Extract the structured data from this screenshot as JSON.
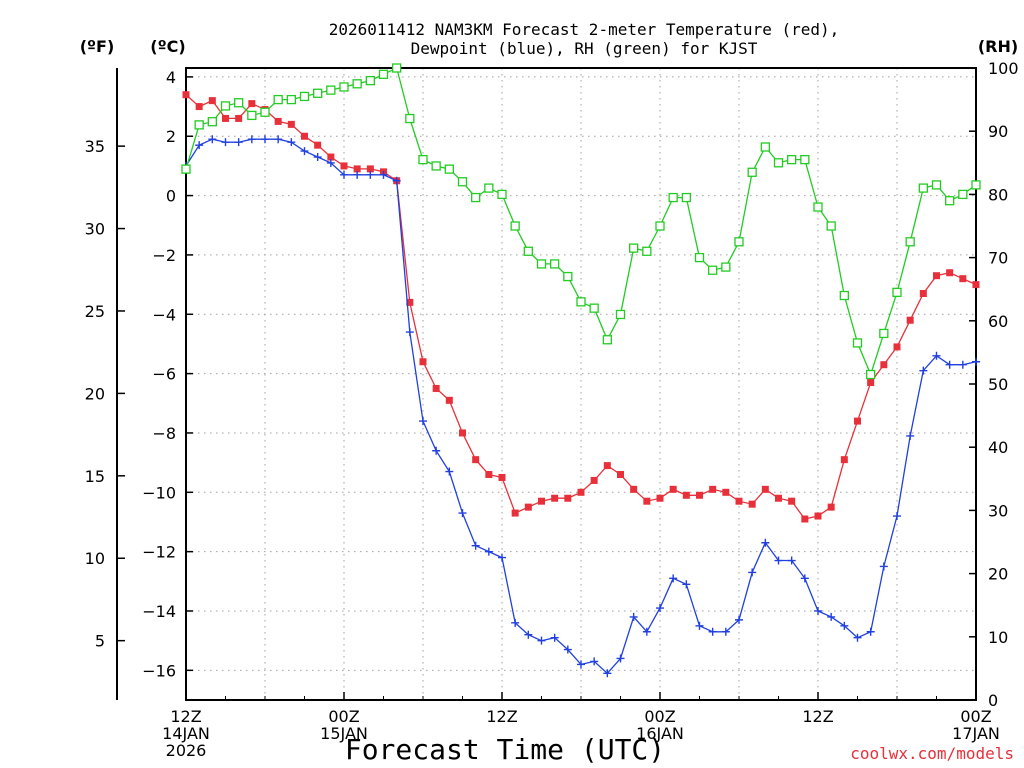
{
  "chart_data": {
    "type": "line",
    "title_line1": "2026011412 NAM3KM Forecast 2-meter Temperature (red),",
    "title_line2": "Dewpoint (blue), RH (green) for KJST",
    "xlabel": "Forecast Time (UTC)",
    "credit": "coolwx.com/models",
    "units": {
      "fahrenheit": "(ºF)",
      "celsius": "(ºC)",
      "rh": "(RH)"
    },
    "x_range_hours": [
      0,
      60
    ],
    "ylim_celsius": [
      -17,
      4.3
    ],
    "ylim_rh": [
      0,
      100
    ],
    "celsius_ticks": [
      4,
      2,
      0,
      -2,
      -4,
      -6,
      -8,
      -10,
      -12,
      -14,
      -16
    ],
    "fahrenheit_ticks": [
      35,
      30,
      25,
      20,
      15,
      10,
      5
    ],
    "rh_ticks": [
      0,
      10,
      20,
      30,
      40,
      50,
      60,
      70,
      80,
      90,
      100
    ],
    "x_ticks": [
      {
        "hour": 0,
        "lines": [
          "12Z",
          "14JAN",
          "2026"
        ]
      },
      {
        "hour": 12,
        "lines": [
          "00Z",
          "15JAN"
        ]
      },
      {
        "hour": 24,
        "lines": [
          "12Z"
        ]
      },
      {
        "hour": 36,
        "lines": [
          "00Z",
          "16JAN"
        ]
      },
      {
        "hour": 48,
        "lines": [
          "12Z"
        ]
      },
      {
        "hour": 60,
        "lines": [
          "00Z",
          "17JAN"
        ]
      }
    ],
    "series": [
      {
        "name": "2-meter Temperature",
        "color": "#e8303a",
        "axis": "celsius",
        "marker": "filled-square",
        "hours": [
          0,
          1,
          2,
          3,
          4,
          5,
          6,
          7,
          8,
          9,
          10,
          11,
          12,
          13,
          14,
          15,
          16,
          17,
          18,
          19,
          20,
          21,
          22,
          23,
          24,
          25,
          26,
          27,
          28,
          29,
          30,
          31,
          32,
          33,
          34,
          35,
          36,
          37,
          38,
          39,
          40,
          41,
          42,
          43,
          44,
          45,
          46,
          47,
          48,
          49,
          50,
          51,
          52,
          53,
          54,
          55,
          56,
          57,
          58,
          59,
          60
        ],
        "values": [
          3.4,
          3.0,
          3.2,
          2.6,
          2.6,
          3.1,
          2.9,
          2.5,
          2.4,
          2.0,
          1.7,
          1.3,
          1.0,
          0.9,
          0.9,
          0.8,
          0.5,
          -3.6,
          -5.6,
          -6.5,
          -6.9,
          -8.0,
          -8.9,
          -9.4,
          -9.5,
          -10.7,
          -10.5,
          -10.3,
          -10.2,
          -10.2,
          -10.0,
          -9.6,
          -9.1,
          -9.4,
          -9.9,
          -10.3,
          -10.2,
          -9.9,
          -10.1,
          -10.1,
          -9.9,
          -10.0,
          -10.3,
          -10.4,
          -9.9,
          -10.2,
          -10.3,
          -10.9,
          -10.8,
          -10.5,
          -8.9,
          -7.6,
          -6.3,
          -5.7,
          -5.1,
          -4.2,
          -3.3,
          -2.7,
          -2.6,
          -2.8,
          -3.0
        ]
      },
      {
        "name": "Dewpoint",
        "color": "#2040e0",
        "axis": "celsius",
        "marker": "plus",
        "hours": [
          0,
          1,
          2,
          3,
          4,
          5,
          6,
          7,
          8,
          9,
          10,
          11,
          12,
          13,
          14,
          15,
          16,
          17,
          18,
          19,
          20,
          21,
          22,
          23,
          24,
          25,
          26,
          27,
          28,
          29,
          30,
          31,
          32,
          33,
          34,
          35,
          36,
          37,
          38,
          39,
          40,
          41,
          42,
          43,
          44,
          45,
          46,
          47,
          48,
          49,
          50,
          51,
          52,
          53,
          54,
          55,
          56,
          57,
          58,
          59,
          60
        ],
        "values": [
          1.0,
          1.7,
          1.9,
          1.8,
          1.8,
          1.9,
          1.9,
          1.9,
          1.8,
          1.5,
          1.3,
          1.1,
          0.7,
          0.7,
          0.7,
          0.7,
          0.5,
          -4.6,
          -7.6,
          -8.6,
          -9.3,
          -10.7,
          -11.8,
          -12.0,
          -12.2,
          -14.4,
          -14.8,
          -15.0,
          -14.9,
          -15.3,
          -15.8,
          -15.7,
          -16.1,
          -15.6,
          -14.2,
          -14.7,
          -13.9,
          -12.9,
          -13.1,
          -14.5,
          -14.7,
          -14.7,
          -14.3,
          -12.7,
          -11.7,
          -12.3,
          -12.3,
          -12.9,
          -14.0,
          -14.2,
          -14.5,
          -14.9,
          -14.7,
          -12.5,
          -10.8,
          -8.1,
          -5.9,
          -5.4,
          -5.7,
          -5.7,
          -5.6
        ]
      },
      {
        "name": "RH",
        "color": "#22cc22",
        "axis": "rh",
        "marker": "open-square",
        "hours": [
          0,
          1,
          2,
          3,
          4,
          5,
          6,
          7,
          8,
          9,
          10,
          11,
          12,
          13,
          14,
          15,
          16,
          17,
          18,
          19,
          20,
          21,
          22,
          23,
          24,
          25,
          26,
          27,
          28,
          29,
          30,
          31,
          32,
          33,
          34,
          35,
          36,
          37,
          38,
          39,
          40,
          41,
          42,
          43,
          44,
          45,
          46,
          47,
          48,
          49,
          50,
          51,
          52,
          53,
          54,
          55,
          56,
          57,
          58,
          59,
          60
        ],
        "values": [
          84,
          91,
          91.5,
          94,
          94.5,
          92.5,
          93,
          95,
          95,
          95.5,
          96,
          96.5,
          97,
          97.5,
          98,
          99,
          100,
          92,
          85.5,
          84.5,
          84,
          82,
          79.5,
          81,
          80,
          75,
          71,
          69,
          69,
          67,
          63,
          62,
          57,
          61,
          71.5,
          71,
          75,
          79.5,
          79.5,
          70,
          68,
          68.5,
          72.5,
          83.5,
          87.5,
          85,
          85.5,
          85.5,
          78,
          75,
          64,
          56.5,
          51.5,
          58,
          64.5,
          72.5,
          81,
          81.5,
          79,
          80,
          81.5
        ]
      }
    ]
  }
}
